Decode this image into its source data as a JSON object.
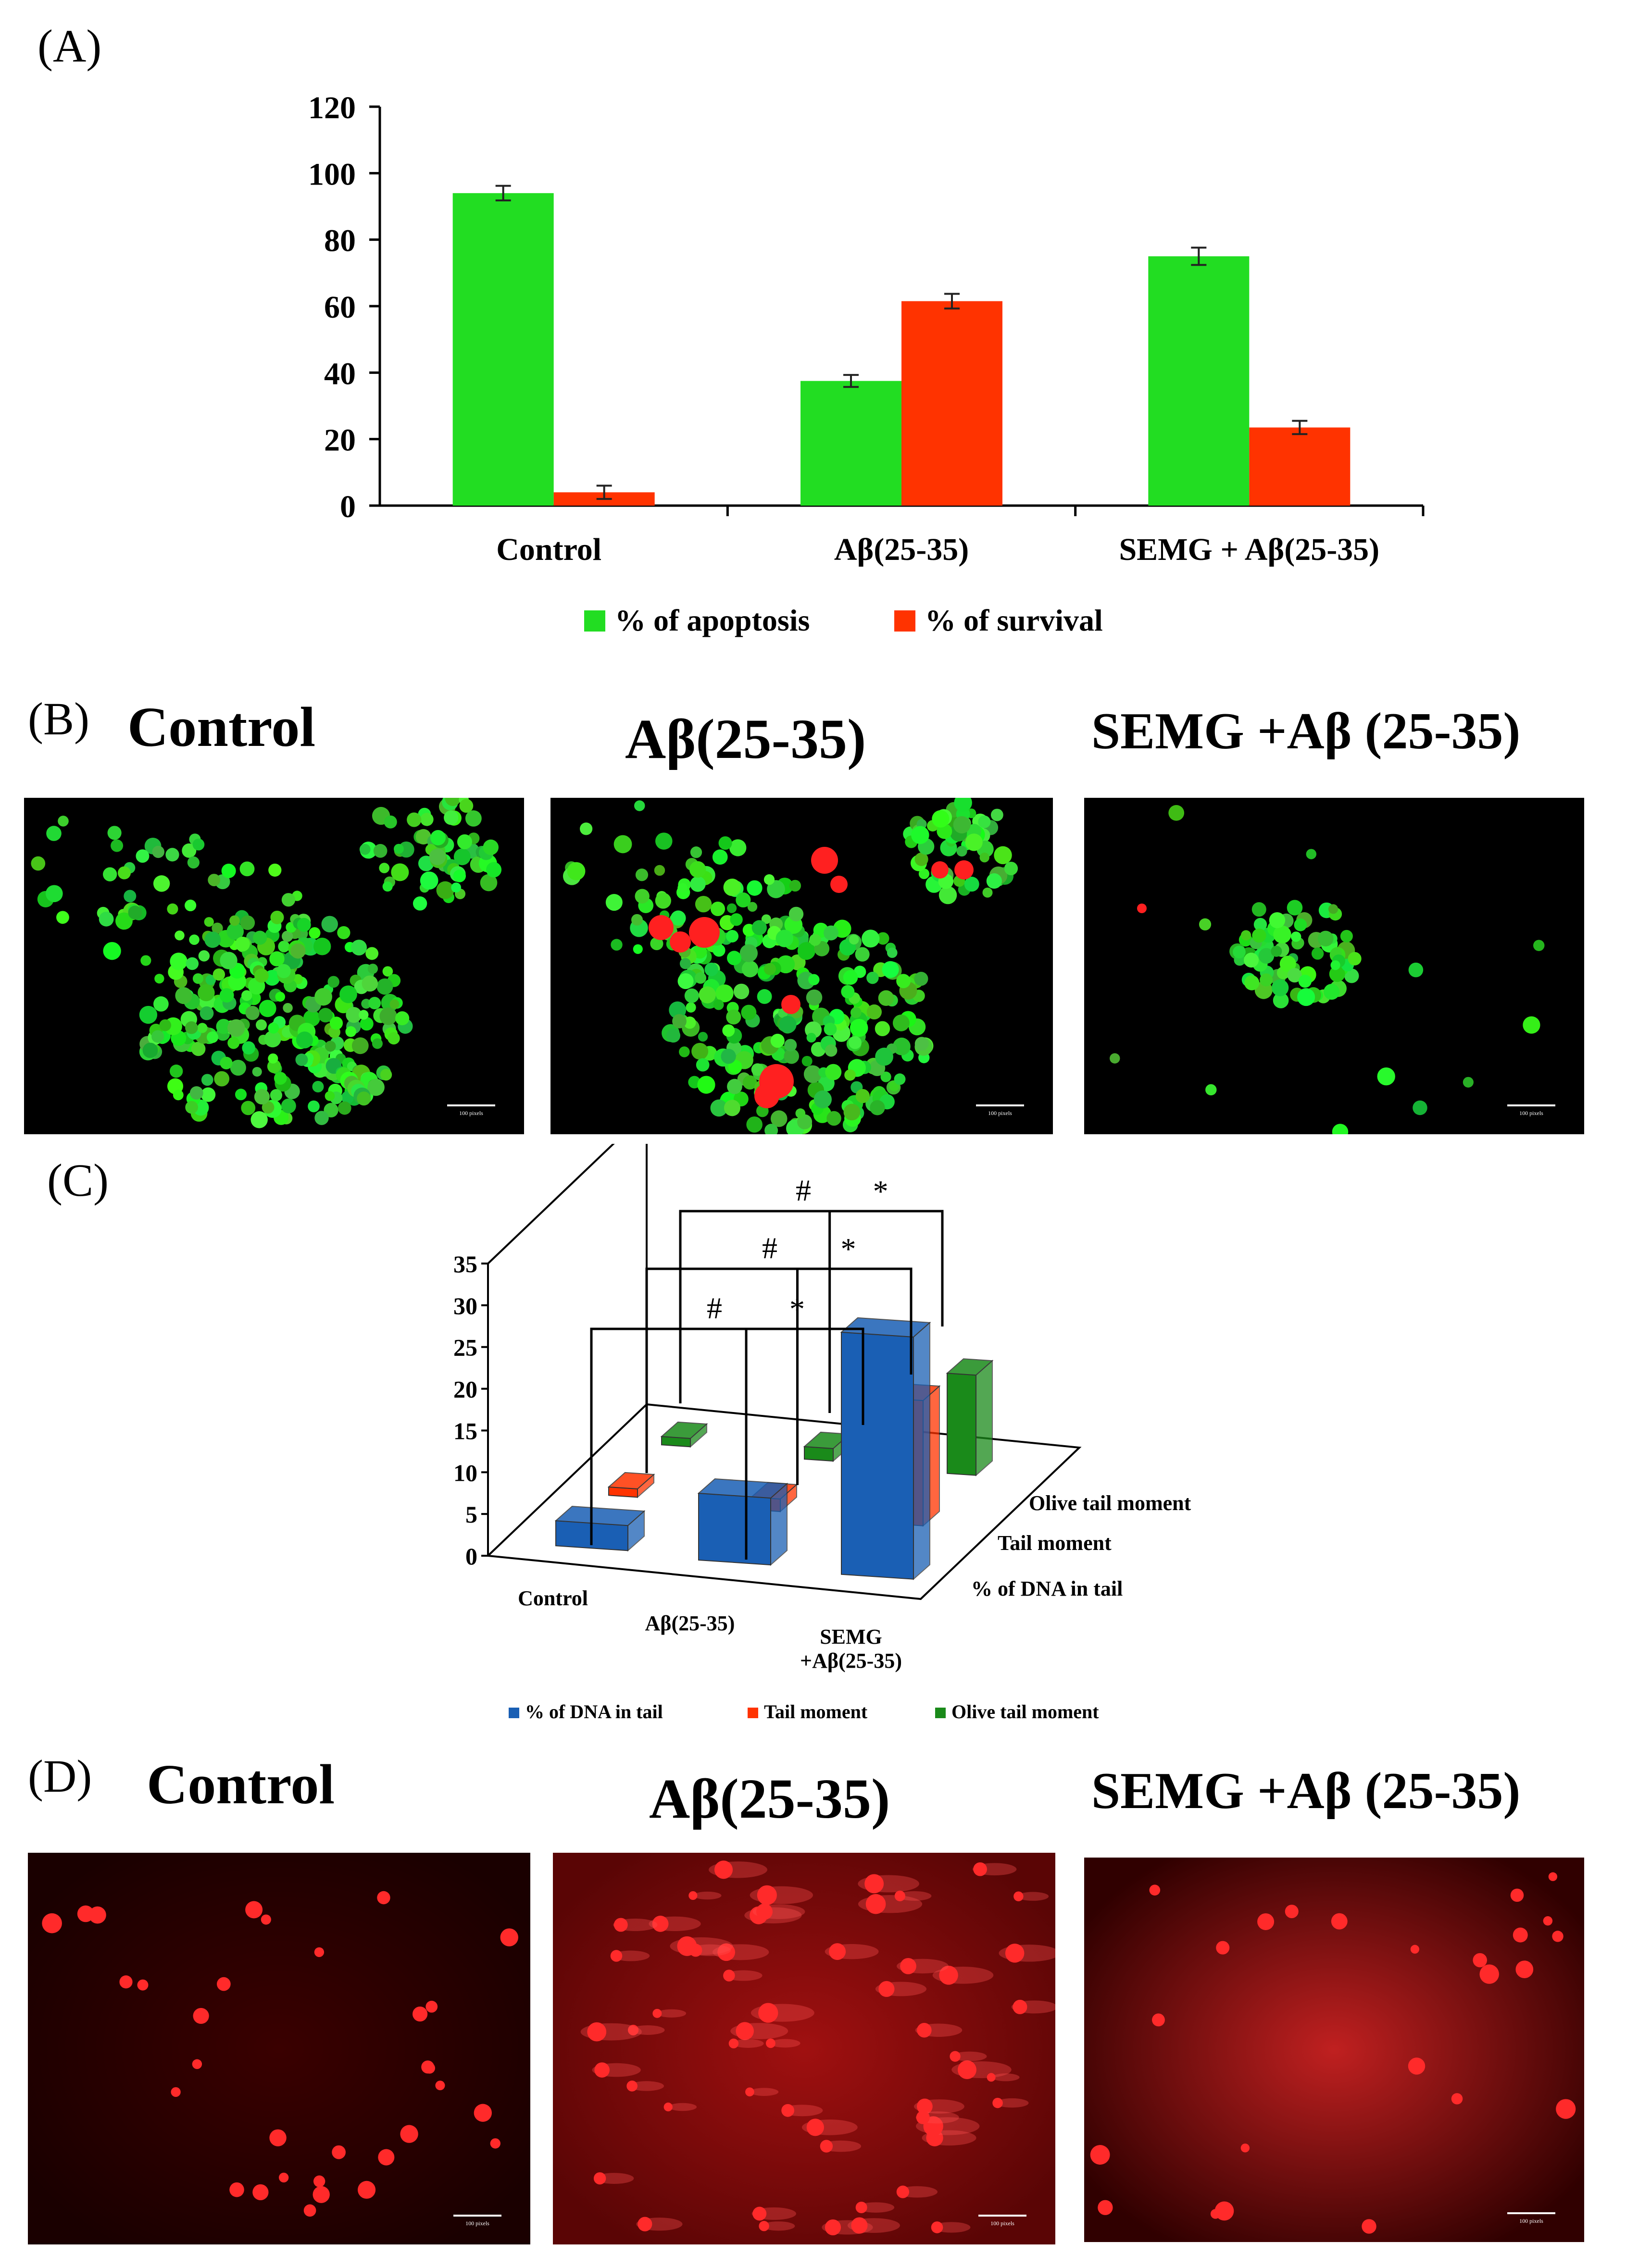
{
  "panels": {
    "A": {
      "letter": "(A)"
    },
    "B": {
      "letter": "(B)",
      "titles": [
        "Control",
        "Aβ(25-35)",
        "SEMG +Aβ (25-35)"
      ]
    },
    "C": {
      "letter": "(C)"
    },
    "D": {
      "letter": "(D)",
      "titles": [
        "Control",
        "Aβ(25-35)",
        "SEMG +Aβ (25-35)"
      ]
    }
  },
  "significance_marks": [
    "#",
    "#",
    "#",
    "*",
    "*",
    "*"
  ],
  "scale_bar_label": "100 pixels",
  "chart_data": [
    {
      "type": "bar",
      "categories": [
        "Control",
        "Aβ(25-35)",
        "SEMG + Aβ(25-35)"
      ],
      "series": [
        {
          "name": "% of apoptosis",
          "values": [
            94,
            37.5,
            75
          ],
          "errors": [
            2.2,
            1.8,
            2.6
          ],
          "color": "#22dd22"
        },
        {
          "name": "% of survival",
          "values": [
            4,
            61.5,
            23.5
          ],
          "errors": [
            2.0,
            2.2,
            2.0
          ],
          "color": "#ff3300"
        }
      ],
      "ylim": [
        0,
        120
      ],
      "yticks": [
        0,
        20,
        40,
        60,
        80,
        100,
        120
      ],
      "legend_position": "bottom"
    },
    {
      "type": "bar",
      "subtype": "3d",
      "categories": [
        "Control",
        "Aβ(25-35)",
        "SEMG +Aβ(25-35)"
      ],
      "series": [
        {
          "name": "% of DNA in tail",
          "values": [
            3,
            8,
            29
          ],
          "color": "#1a5fb4"
        },
        {
          "name": "Tail moment",
          "values": [
            1,
            1.5,
            15
          ],
          "color": "#ff3300"
        },
        {
          "name": "Olive tail moment",
          "values": [
            1,
            1.5,
            12
          ],
          "color": "#1a8a1a"
        }
      ],
      "ylim": [
        0,
        35
      ],
      "yticks": [
        0,
        5,
        10,
        15,
        20,
        25,
        30,
        35
      ],
      "ytick_labels": [
        "0",
        "5",
        "10",
        "15",
        "20",
        "25",
        "30",
        "35"
      ],
      "legend_position": "bottom"
    }
  ]
}
